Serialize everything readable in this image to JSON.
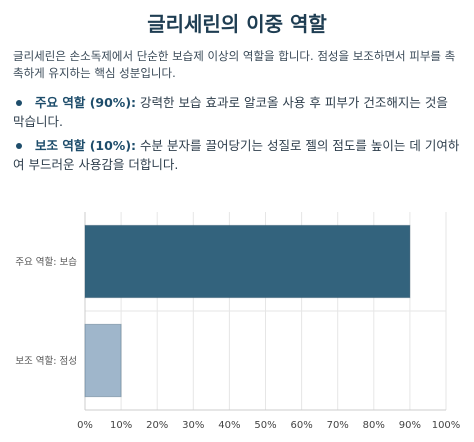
{
  "title": "글리세린의 이중 역할",
  "intro": "글리세린은 손소독제에서 단순한 보습제 이상의 역할을 합니다. 점성을 보조하면서 피부를 촉촉하게 유지하는 핵심 성분입니다.",
  "bullets": [
    {
      "term": "주요 역할 (90%):",
      "text": " 강력한 보습 효과로 알코올 사용 후 피부가 건조해지는 것을 막습니다."
    },
    {
      "term": "보조 역할 (10%):",
      "text": " 수분 분자를 끌어당기는 성질로 젤의 점도를 높이는 데 기여하여 부드러운 사용감을 더합니다."
    }
  ],
  "chart_data": {
    "type": "bar",
    "orientation": "horizontal",
    "categories": [
      "주요 역할: 보습",
      "보조 역할: 점성"
    ],
    "values": [
      90,
      10
    ],
    "colors": [
      "#33637d",
      "#9fb6cb"
    ],
    "xlim": [
      0,
      100
    ],
    "xticks": [
      "0%",
      "10%",
      "20%",
      "30%",
      "40%",
      "50%",
      "60%",
      "70%",
      "80%",
      "90%",
      "100%"
    ],
    "grid": true
  }
}
